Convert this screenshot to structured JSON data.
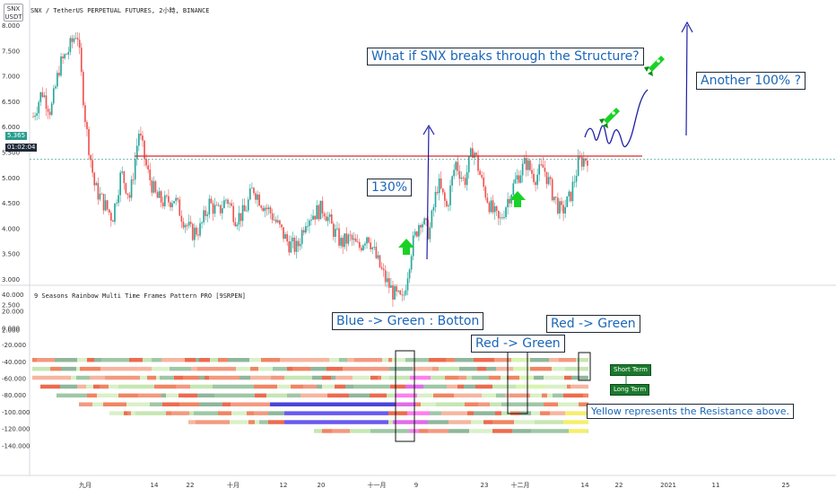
{
  "symbol_badge": {
    "line1": "SNX",
    "line2": "USDT"
  },
  "main_title": "SNX / TetherUS PERPETUAL FUTURES, 2小時, BINANCE",
  "indicator_title": "9 Seasons Rainbow Multi Time Frames Pattern PRO [9SRPEN]",
  "price_label": "5.365",
  "countdown_label": "01:02:04",
  "annotations": {
    "question": "What if SNX breaks through the Structure?",
    "another": "Another 100% ?",
    "pct130": "130%",
    "blue_green": "Blue -> Green : Botton",
    "red_green_1": "Red -> Green",
    "red_green_2": "Red -> Green",
    "yellow_note": "Yellow represents the Resistance above.",
    "short_term": "Short Term",
    "long_term": "Long Term"
  },
  "colors": {
    "resistance": "#e0272c",
    "arrow": "#1f1fa8",
    "green_arrow": "#19d226",
    "up_candle": "#26a69a",
    "down_candle": "#ef5350",
    "price_tag": "#2a9d8f",
    "countdown_tag": "#1f2937"
  },
  "chart_data": [
    {
      "type": "candlestick",
      "title": "SNX / TetherUS PERPETUAL FUTURES, 2小時, BINANCE",
      "ylim": [
        2.0,
        8.25
      ],
      "y_ticks": [
        "8.000",
        "7.500",
        "7.000",
        "6.500",
        "6.000",
        "5.500",
        "5.000",
        "4.500",
        "4.000",
        "3.500",
        "3.000",
        "2.500",
        "2.000"
      ],
      "x_ticks": [
        "九月",
        "14",
        "22",
        "十月",
        "12",
        "20",
        "十一月",
        "9",
        "23",
        "十二月",
        "14",
        "22",
        "2021",
        "11",
        "25"
      ],
      "resistance_level": 5.42,
      "close_series": [
        6.2,
        6.7,
        6.3,
        7.2,
        7.5,
        7.9,
        6.0,
        4.8,
        4.5,
        4.2,
        5.1,
        4.6,
        5.9,
        5.1,
        4.6,
        4.5,
        4.6,
        4.2,
        3.9,
        4.0,
        4.5,
        4.3,
        4.6,
        4.2,
        4.3,
        4.8,
        4.5,
        4.3,
        4.0,
        3.7,
        3.6,
        4.2,
        4.3,
        4.4,
        4.0,
        3.7,
        3.8,
        3.6,
        3.9,
        3.4,
        3.0,
        2.7,
        2.55,
        3.6,
        4.2,
        3.9,
        4.9,
        4.4,
        5.3,
        4.9,
        5.6,
        4.9,
        4.4,
        4.1,
        4.6,
        5.0,
        5.3,
        5.0,
        5.2,
        4.7,
        4.3,
        4.6,
        5.3,
        5.4
      ],
      "annotation_texts": [
        "What if SNX breaks through the Structure?",
        "Another 100% ?",
        "130%"
      ]
    },
    {
      "type": "heatmap",
      "title": "9 Seasons Rainbow Multi Time Frames Pattern PRO [9SRPEN]",
      "ylim": [
        -145,
        40
      ],
      "y_ticks": [
        "40.000",
        "20.000",
        "0.000",
        "-20.000",
        "-40.000",
        "-60.000",
        "-80.000",
        "-100.000",
        "-120.000",
        "-140.000"
      ],
      "rows": 9,
      "annotation_texts": [
        "Blue -> Green : Botton",
        "Red -> Green",
        "Red -> Green",
        "Yellow represents the Resistance above.",
        "Short Term",
        "Long Term"
      ]
    }
  ]
}
